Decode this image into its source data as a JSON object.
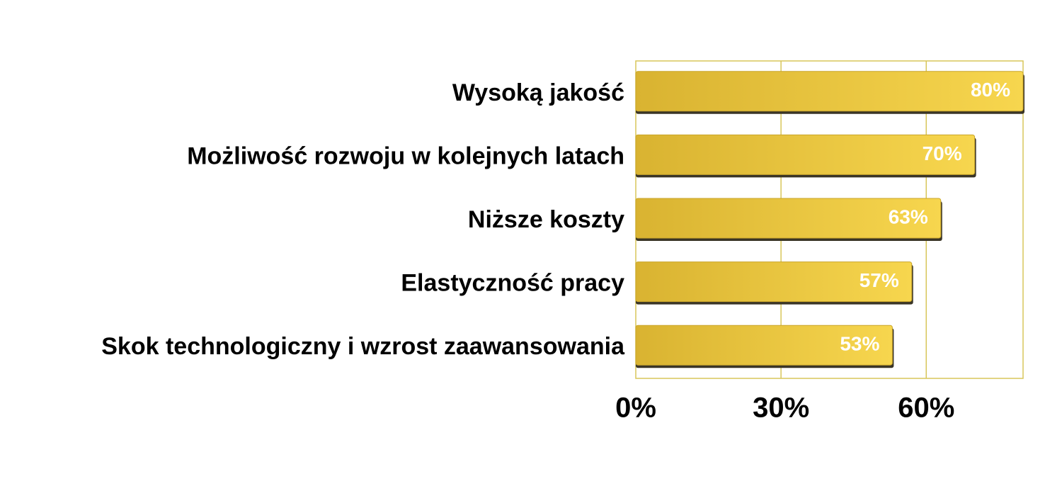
{
  "chart_data": {
    "type": "bar",
    "orientation": "horizontal",
    "categories": [
      "Wysoką jakość",
      "Możliwość rozwoju w kolejnych latach",
      "Niższe koszty",
      "Elastyczność pracy",
      "Skok technologiczny i wzrost zaawansowania"
    ],
    "values": [
      80,
      70,
      63,
      57,
      53
    ],
    "value_labels": [
      "80%",
      "70%",
      "63%",
      "57%",
      "53%"
    ],
    "color": "#e8c23a",
    "xlim": [
      0,
      80
    ],
    "xticks": [
      {
        "value": 0,
        "label": "0%"
      },
      {
        "value": 30,
        "label": "30%"
      },
      {
        "value": 60,
        "label": "60%"
      }
    ],
    "grid": true
  }
}
